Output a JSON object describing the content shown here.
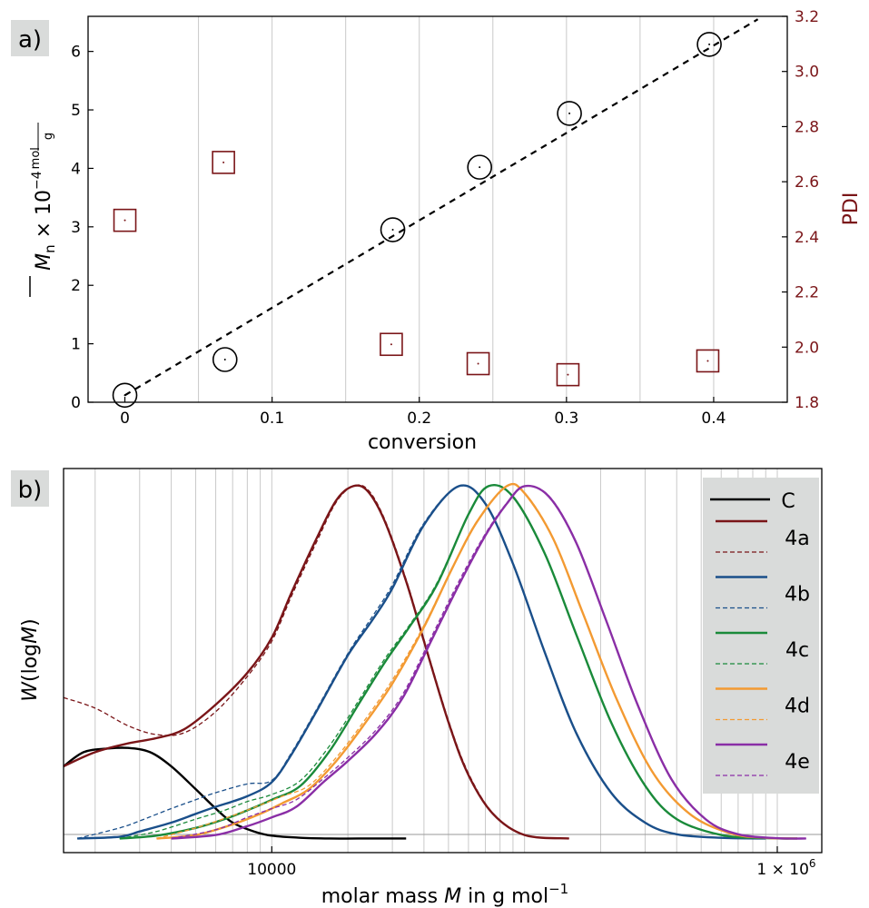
{
  "panels": {
    "a": {
      "label": "a)"
    },
    "b": {
      "label": "b)"
    }
  },
  "colors": {
    "dark_red": "#7a1518",
    "blue": "#1a4f8a",
    "green": "#1a8a3a",
    "orange": "#f39a32",
    "purple": "#8a2ea6",
    "black": "#000000",
    "grid": "#c9c9c9",
    "legend_bg": "#d9dbda",
    "label_bg": "#d9dbda"
  },
  "chart_data": [
    {
      "type": "scatter",
      "panel": "a",
      "xlabel": "conversion",
      "ylabel_main": "M",
      "ylabel_sub": "n",
      "ylabel_times": " × 10",
      "ylabel_exp": "−4",
      "ylabel_frac_num": "mol",
      "ylabel_frac_den": "g",
      "y2label": "PDI",
      "xlim": [
        -0.025,
        0.45
      ],
      "ylim": [
        0,
        6.6
      ],
      "y2lim": [
        1.8,
        3.2
      ],
      "xticks": [
        0,
        0.1,
        0.2,
        0.3,
        0.4
      ],
      "xtick_labels": [
        "0",
        "0.1",
        "0.2",
        "0.3",
        "0.4"
      ],
      "yticks": [
        0,
        1,
        2,
        3,
        4,
        5,
        6
      ],
      "ytick_labels": [
        "0",
        "1",
        "2",
        "3",
        "4",
        "5",
        "6"
      ],
      "y2ticks": [
        1.8,
        2.0,
        2.2,
        2.4,
        2.6,
        2.8,
        3.0,
        3.2
      ],
      "y2tick_labels": [
        "1.8",
        "2.0",
        "2.2",
        "2.4",
        "2.6",
        "2.8",
        "3.0",
        "3.2"
      ],
      "grid_x": [
        0.05,
        0.1,
        0.15,
        0.2,
        0.25,
        0.3,
        0.35,
        0.4
      ],
      "series": [
        {
          "name": "Mn",
          "marker": "circle",
          "axis": "left",
          "x": [
            0,
            0.068,
            0.182,
            0.241,
            0.302,
            0.397
          ],
          "y": [
            0.12,
            0.73,
            2.95,
            4.02,
            4.94,
            6.12
          ]
        },
        {
          "name": "PDI",
          "marker": "square",
          "axis": "right",
          "x": [
            0,
            0.067,
            0.181,
            0.24,
            0.301,
            0.396
          ],
          "y": [
            2.46,
            2.67,
            2.01,
            1.94,
            1.9,
            1.95
          ]
        }
      ],
      "fit_line": {
        "style": "dashed",
        "x": [
          0,
          0.43
        ],
        "y": [
          0.12,
          6.55
        ]
      }
    },
    {
      "type": "line",
      "panel": "b",
      "xscale": "log",
      "xlabel_prefix": "molar mass ",
      "xlabel_var": "M",
      "xlabel_suffix": " in g mol",
      "xlabel_exp": "−1",
      "ylabel_prefix": "W",
      "ylabel_paren_open": "(log",
      "ylabel_var": "M",
      "ylabel_paren_close": ")",
      "xlim": [
        1500,
        1500000
      ],
      "ylim": [
        -0.04,
        1.05
      ],
      "xtick_labels": [
        "10000",
        "1 × 10"
      ],
      "xtick_values": [
        10000,
        1000000
      ],
      "xtick_exp": "6",
      "legend": [
        {
          "label": "C",
          "color_key": "black"
        },
        {
          "label": "4a",
          "color_key": "dark_red"
        },
        {
          "label": "4b",
          "color_key": "blue"
        },
        {
          "label": "4c",
          "color_key": "green"
        },
        {
          "label": "4d",
          "color_key": "orange"
        },
        {
          "label": "4e",
          "color_key": "purple"
        }
      ],
      "series": [
        {
          "name": "C",
          "color_key": "black",
          "x": [
            1500,
            1800,
            2200,
            2700,
            3300,
            4000,
            5000,
            6000,
            7000,
            8500,
            10000,
            13000,
            17000,
            22000,
            34000
          ],
          "y": [
            0.205,
            0.245,
            0.255,
            0.257,
            0.245,
            0.205,
            0.14,
            0.085,
            0.045,
            0.02,
            0.008,
            0.002,
            0.0,
            0.0,
            0.0
          ],
          "dashed": null
        },
        {
          "name": "4a",
          "color_key": "dark_red",
          "x": [
            1500,
            2000,
            2700,
            3500,
            4500,
            6000,
            8000,
            10000,
            12000,
            15000,
            18000,
            21000,
            24000,
            28000,
            34000,
            40000,
            50000,
            60000,
            75000,
            100000,
            150000
          ],
          "y": [
            0.205,
            0.245,
            0.27,
            0.285,
            0.31,
            0.38,
            0.47,
            0.57,
            0.7,
            0.85,
            0.96,
            1.0,
            0.985,
            0.9,
            0.73,
            0.56,
            0.33,
            0.18,
            0.07,
            0.01,
            0.0
          ],
          "dashed": {
            "x": [
              1500,
              2000,
              2700,
              3500,
              4500,
              6000,
              8000,
              10000,
              12000,
              15000,
              18000,
              21000,
              24000,
              28000,
              34000,
              40000,
              50000,
              60000,
              75000,
              100000,
              150000
            ],
            "y": [
              0.4,
              0.37,
              0.32,
              0.295,
              0.3,
              0.36,
              0.46,
              0.56,
              0.69,
              0.84,
              0.955,
              1.0,
              0.99,
              0.905,
              0.735,
              0.565,
              0.335,
              0.185,
              0.072,
              0.011,
              0.0
            ]
          }
        },
        {
          "name": "4b",
          "color_key": "blue",
          "x": [
            1700,
            2500,
            3000,
            4000,
            5000,
            6000,
            8000,
            10000,
            12000,
            15000,
            20000,
            25000,
            30000,
            40000,
            55000,
            70000,
            90000,
            120000,
            160000,
            220000,
            300000,
            400000,
            600000,
            900000
          ],
          "y": [
            0.0,
            0.005,
            0.02,
            0.045,
            0.07,
            0.09,
            0.12,
            0.16,
            0.24,
            0.36,
            0.52,
            0.62,
            0.71,
            0.89,
            1.0,
            0.95,
            0.78,
            0.53,
            0.3,
            0.13,
            0.045,
            0.012,
            0.002,
            0.0
          ],
          "dashed": {
            "x": [
              1700,
              2500,
              3000,
              4000,
              5000,
              6000,
              8000,
              10000,
              12000,
              15000,
              20000,
              25000,
              30000,
              40000,
              55000,
              70000,
              90000,
              120000,
              160000,
              220000,
              300000,
              400000,
              600000,
              900000
            ],
            "y": [
              0.0,
              0.03,
              0.05,
              0.085,
              0.11,
              0.13,
              0.155,
              0.165,
              0.245,
              0.365,
              0.525,
              0.63,
              0.72,
              0.895,
              1.0,
              0.952,
              0.782,
              0.532,
              0.302,
              0.132,
              0.046,
              0.012,
              0.002,
              0.0
            ]
          }
        },
        {
          "name": "4c",
          "color_key": "green",
          "x": [
            2500,
            3500,
            5000,
            6500,
            8000,
            10000,
            13000,
            17000,
            22000,
            28000,
            35000,
            45000,
            60000,
            72000,
            90000,
            120000,
            160000,
            220000,
            300000,
            400000,
            600000,
            900000,
            1200000
          ],
          "y": [
            0.0,
            0.008,
            0.03,
            0.055,
            0.08,
            0.11,
            0.15,
            0.25,
            0.38,
            0.5,
            0.6,
            0.72,
            0.92,
            1.0,
            0.97,
            0.81,
            0.58,
            0.33,
            0.15,
            0.055,
            0.01,
            0.001,
            0.0
          ],
          "dashed": {
            "x": [
              2500,
              3500,
              5000,
              6500,
              8000,
              10000,
              13000,
              17000,
              22000,
              28000,
              35000,
              45000,
              60000,
              72000,
              90000,
              120000,
              160000,
              220000,
              300000,
              400000,
              600000,
              900000,
              1200000
            ],
            "y": [
              0.0,
              0.02,
              0.055,
              0.08,
              0.105,
              0.125,
              0.165,
              0.265,
              0.39,
              0.51,
              0.605,
              0.725,
              0.92,
              1.0,
              0.972,
              0.812,
              0.582,
              0.332,
              0.152,
              0.056,
              0.01,
              0.001,
              0.0
            ]
          }
        },
        {
          "name": "4d",
          "color_key": "orange",
          "x": [
            3500,
            5000,
            7000,
            9000,
            11000,
            14000,
            18000,
            23000,
            30000,
            40000,
            52000,
            65000,
            85000,
            100000,
            130000,
            170000,
            230000,
            320000,
            450000,
            650000,
            900000,
            1200000
          ],
          "y": [
            0.0,
            0.01,
            0.04,
            0.07,
            0.1,
            0.14,
            0.22,
            0.32,
            0.44,
            0.6,
            0.77,
            0.9,
            1.0,
            0.98,
            0.85,
            0.64,
            0.4,
            0.19,
            0.07,
            0.015,
            0.002,
            0.0
          ],
          "dashed": {
            "x": [
              3500,
              5000,
              7000,
              9000,
              11000,
              14000,
              18000,
              23000,
              30000,
              40000,
              52000,
              65000,
              85000,
              100000,
              130000,
              170000,
              230000,
              320000,
              450000,
              650000,
              900000,
              1200000
            ],
            "y": [
              0.0,
              0.03,
              0.065,
              0.095,
              0.12,
              0.15,
              0.23,
              0.33,
              0.45,
              0.605,
              0.772,
              0.902,
              1.0,
              0.982,
              0.852,
              0.642,
              0.402,
              0.192,
              0.071,
              0.015,
              0.002,
              0.0
            ]
          }
        },
        {
          "name": "4e",
          "color_key": "purple",
          "x": [
            4000,
            6000,
            8000,
            10000,
            12500,
            16000,
            20000,
            26000,
            33000,
            42000,
            55000,
            70000,
            85000,
            100000,
            125000,
            160000,
            210000,
            280000,
            380000,
            520000,
            700000,
            1000000,
            1300000
          ],
          "y": [
            0.0,
            0.01,
            0.035,
            0.06,
            0.09,
            0.16,
            0.22,
            0.3,
            0.4,
            0.55,
            0.72,
            0.86,
            0.95,
            1.0,
            0.97,
            0.84,
            0.62,
            0.38,
            0.17,
            0.055,
            0.012,
            0.001,
            0.0
          ],
          "dashed": {
            "x": [
              4000,
              6000,
              8000,
              10000,
              12500,
              16000,
              20000,
              26000,
              33000,
              42000,
              55000,
              70000,
              85000,
              100000,
              125000,
              160000,
              210000,
              280000,
              380000,
              520000,
              700000,
              1000000,
              1300000
            ],
            "y": [
              0.0,
              0.025,
              0.06,
              0.085,
              0.11,
              0.17,
              0.23,
              0.31,
              0.41,
              0.56,
              0.73,
              0.865,
              0.952,
              1.0,
              0.972,
              0.842,
              0.622,
              0.382,
              0.172,
              0.056,
              0.012,
              0.001,
              0.0
            ]
          }
        }
      ]
    }
  ]
}
